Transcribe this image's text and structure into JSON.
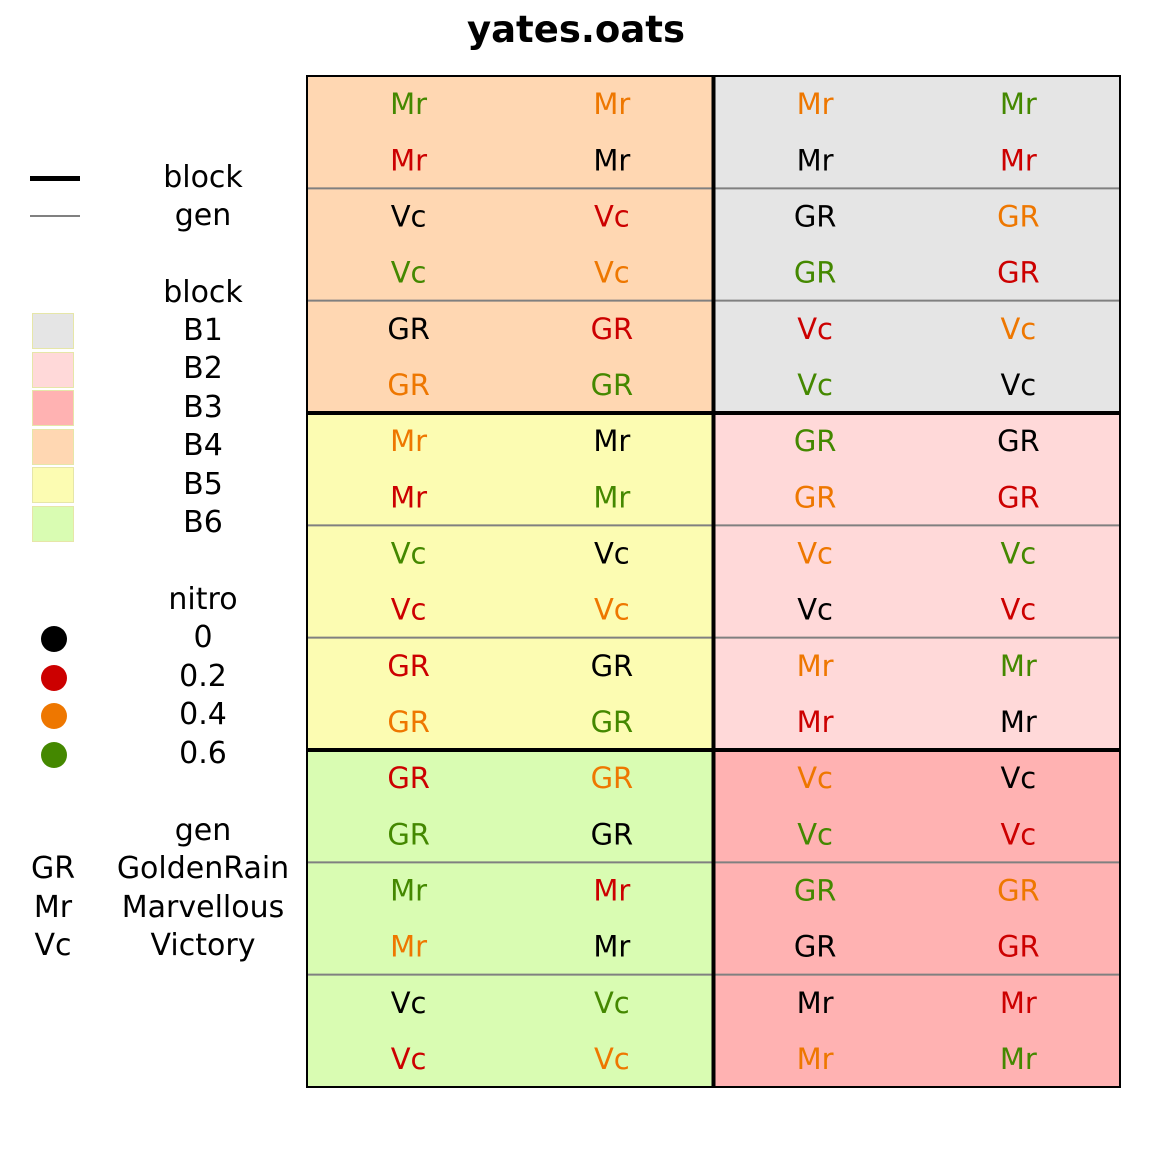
{
  "title": "yates.oats",
  "legend": {
    "lines": [
      {
        "label": "block",
        "color": "#000000",
        "kind": "thick"
      },
      {
        "label": "gen",
        "color": "#808080",
        "kind": "thin"
      }
    ],
    "block": {
      "title": "block",
      "items": [
        {
          "label": "B1",
          "color": "#e5e5e5"
        },
        {
          "label": "B2",
          "color": "#ffd9d9"
        },
        {
          "label": "B3",
          "color": "#ffb2b2"
        },
        {
          "label": "B4",
          "color": "#ffd7b2"
        },
        {
          "label": "B5",
          "color": "#fcfcb2"
        },
        {
          "label": "B6",
          "color": "#d9fcb2"
        }
      ]
    },
    "nitro": {
      "title": "nitro",
      "items": [
        {
          "label": "0",
          "color": "#000000"
        },
        {
          "label": "0.2",
          "color": "#cc0000"
        },
        {
          "label": "0.4",
          "color": "#ee7700"
        },
        {
          "label": "0.6",
          "color": "#448800"
        }
      ]
    },
    "gen": {
      "title": "gen",
      "items": [
        {
          "abbr": "GR",
          "label": "GoldenRain"
        },
        {
          "abbr": "Mr",
          "label": "Marvellous"
        },
        {
          "abbr": "Vc",
          "label": "Victory"
        }
      ]
    }
  },
  "design": {
    "block_layout": [
      [
        "B4",
        "B1"
      ],
      [
        "B5",
        "B2"
      ],
      [
        "B6",
        "B3"
      ]
    ],
    "rows": [
      [
        "Mr|0.6",
        "Mr|0.4",
        "Mr|0.4",
        "Mr|0.6"
      ],
      [
        "Mr|0.2",
        "Mr|0",
        "Mr|0",
        "Mr|0.2"
      ],
      [
        "Vc|0",
        "Vc|0.2",
        "GR|0",
        "GR|0.4"
      ],
      [
        "Vc|0.6",
        "Vc|0.4",
        "GR|0.6",
        "GR|0.2"
      ],
      [
        "GR|0",
        "GR|0.2",
        "Vc|0.2",
        "Vc|0.4"
      ],
      [
        "GR|0.4",
        "GR|0.6",
        "Vc|0.6",
        "Vc|0"
      ],
      [
        "Mr|0.4",
        "Mr|0",
        "GR|0.6",
        "GR|0"
      ],
      [
        "Mr|0.2",
        "Mr|0.6",
        "GR|0.4",
        "GR|0.2"
      ],
      [
        "Vc|0.6",
        "Vc|0",
        "Vc|0.4",
        "Vc|0.6"
      ],
      [
        "Vc|0.2",
        "Vc|0.4",
        "Vc|0",
        "Vc|0.2"
      ],
      [
        "GR|0.2",
        "GR|0",
        "Mr|0.4",
        "Mr|0.6"
      ],
      [
        "GR|0.4",
        "GR|0.6",
        "Mr|0.2",
        "Mr|0"
      ],
      [
        "GR|0.2",
        "GR|0.4",
        "Vc|0.4",
        "Vc|0"
      ],
      [
        "GR|0.6",
        "GR|0",
        "Vc|0.6",
        "Vc|0.2"
      ],
      [
        "Mr|0.6",
        "Mr|0.2",
        "GR|0.6",
        "GR|0.4"
      ],
      [
        "Mr|0.4",
        "Mr|0",
        "GR|0",
        "GR|0.2"
      ],
      [
        "Vc|0",
        "Vc|0.6",
        "Mr|0",
        "Mr|0.2"
      ],
      [
        "Vc|0.2",
        "Vc|0.4",
        "Mr|0.4",
        "Mr|0.6"
      ]
    ]
  }
}
